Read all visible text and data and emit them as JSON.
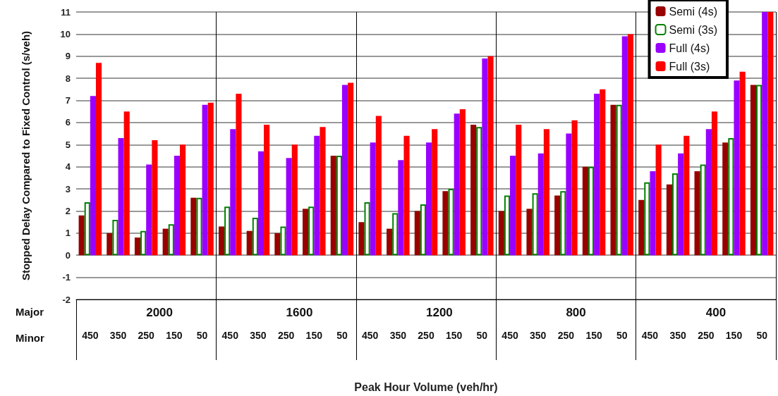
{
  "chart_data": {
    "type": "bar",
    "xlabel": "Peak Hour Volume (veh/hr)",
    "ylabel": "Stopped Delay Compared to Fixed Control (s/veh)",
    "categories": [
      "450",
      "350",
      "250",
      "150",
      "50",
      "450",
      "350",
      "250",
      "150",
      "50",
      "450",
      "350",
      "250",
      "150",
      "50",
      "450",
      "350",
      "250",
      "150",
      "50",
      "450",
      "350",
      "250",
      "150",
      "50"
    ],
    "annotations": [
      "Major",
      "Minor",
      "2000",
      "1600",
      "1200",
      "800",
      "400"
    ],
    "series": [
      {
        "name": "Semi (4s)",
        "color": "#990000",
        "values": [
          1.8,
          1.0,
          0.8,
          1.2,
          2.6,
          1.3,
          1.1,
          1.0,
          2.1,
          4.5,
          1.5,
          1.2,
          2.0,
          2.9,
          5.9,
          2.0,
          2.1,
          2.7,
          4.0,
          6.8,
          2.5,
          3.2,
          3.8,
          5.1,
          7.7
        ]
      },
      {
        "name": "Semi (3s)",
        "color": "#008000",
        "values": [
          2.4,
          1.6,
          1.1,
          1.4,
          2.6,
          2.2,
          1.7,
          1.3,
          2.2,
          4.5,
          2.4,
          1.9,
          2.3,
          3.0,
          5.8,
          2.7,
          2.8,
          2.9,
          4.0,
          6.8,
          3.3,
          3.7,
          4.1,
          5.3,
          7.7
        ]
      },
      {
        "name": "Full (4s)",
        "color": "#9900ff",
        "values": [
          7.2,
          5.3,
          4.1,
          4.5,
          6.8,
          5.7,
          4.7,
          4.4,
          5.4,
          7.7,
          5.1,
          4.3,
          5.1,
          6.4,
          8.9,
          4.5,
          4.6,
          5.5,
          7.3,
          9.9,
          3.8,
          4.6,
          5.7,
          7.9,
          11
        ]
      },
      {
        "name": "Full (3s)",
        "color": "#ff0000",
        "values": [
          8.7,
          6.5,
          5.2,
          5.0,
          6.9,
          7.3,
          5.9,
          5.0,
          5.8,
          7.8,
          6.3,
          5.4,
          5.7,
          6.6,
          9.0,
          5.9,
          5.7,
          6.1,
          7.5,
          10.0,
          5.0,
          5.4,
          6.5,
          8.3,
          11
        ]
      }
    ],
    "ylim": [
      -2,
      11
    ],
    "yticks": [
      -2,
      -1,
      0,
      1,
      2,
      3,
      4,
      5,
      6,
      7,
      8,
      9,
      10,
      11
    ],
    "grid": "y",
    "legend": "top right"
  }
}
